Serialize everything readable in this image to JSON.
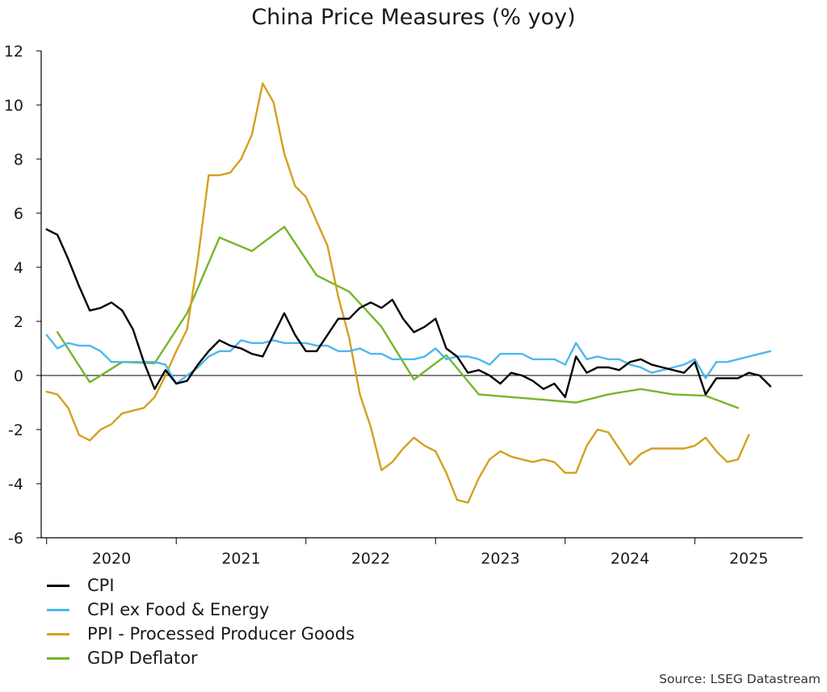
{
  "chart_data": {
    "type": "line",
    "title": "China Price Measures (% yoy)",
    "xlabel": "",
    "ylabel": "",
    "ylim": [
      -6,
      12
    ],
    "yticks": [
      12,
      10,
      8,
      6,
      4,
      2,
      0,
      -2,
      -4,
      -6
    ],
    "xlim": [
      2019.958,
      2025.833
    ],
    "year_labels": [
      "2020",
      "2021",
      "2022",
      "2023",
      "2024",
      "2025"
    ],
    "legend_position": "bottom-left",
    "grid": false,
    "source": "Source: LSEG Datastream",
    "series": [
      {
        "name": "CPI",
        "color": "#000000",
        "points": [
          [
            "2020-01",
            5.4
          ],
          [
            "2020-02",
            5.2
          ],
          [
            "2020-03",
            4.3
          ],
          [
            "2020-04",
            3.3
          ],
          [
            "2020-05",
            2.4
          ],
          [
            "2020-06",
            2.5
          ],
          [
            "2020-07",
            2.7
          ],
          [
            "2020-08",
            2.4
          ],
          [
            "2020-09",
            1.7
          ],
          [
            "2020-10",
            0.5
          ],
          [
            "2020-11",
            -0.5
          ],
          [
            "2020-12",
            0.2
          ],
          [
            "2021-01",
            -0.3
          ],
          [
            "2021-02",
            -0.2
          ],
          [
            "2021-03",
            0.4
          ],
          [
            "2021-04",
            0.9
          ],
          [
            "2021-05",
            1.3
          ],
          [
            "2021-06",
            1.1
          ],
          [
            "2021-07",
            1.0
          ],
          [
            "2021-08",
            0.8
          ],
          [
            "2021-09",
            0.7
          ],
          [
            "2021-10",
            1.5
          ],
          [
            "2021-11",
            2.3
          ],
          [
            "2021-12",
            1.5
          ],
          [
            "2022-01",
            0.9
          ],
          [
            "2022-02",
            0.9
          ],
          [
            "2022-03",
            1.5
          ],
          [
            "2022-04",
            2.1
          ],
          [
            "2022-05",
            2.1
          ],
          [
            "2022-06",
            2.5
          ],
          [
            "2022-07",
            2.7
          ],
          [
            "2022-08",
            2.5
          ],
          [
            "2022-09",
            2.8
          ],
          [
            "2022-10",
            2.1
          ],
          [
            "2022-11",
            1.6
          ],
          [
            "2022-12",
            1.8
          ],
          [
            "2023-01",
            2.1
          ],
          [
            "2023-02",
            1.0
          ],
          [
            "2023-03",
            0.7
          ],
          [
            "2023-04",
            0.1
          ],
          [
            "2023-05",
            0.2
          ],
          [
            "2023-06",
            0.0
          ],
          [
            "2023-07",
            -0.3
          ],
          [
            "2023-08",
            0.1
          ],
          [
            "2023-09",
            0.0
          ],
          [
            "2023-10",
            -0.2
          ],
          [
            "2023-11",
            -0.5
          ],
          [
            "2023-12",
            -0.3
          ],
          [
            "2024-01",
            -0.8
          ],
          [
            "2024-02",
            0.7
          ],
          [
            "2024-03",
            0.1
          ],
          [
            "2024-04",
            0.3
          ],
          [
            "2024-05",
            0.3
          ],
          [
            "2024-06",
            0.2
          ],
          [
            "2024-07",
            0.5
          ],
          [
            "2024-08",
            0.6
          ],
          [
            "2024-09",
            0.4
          ],
          [
            "2024-10",
            0.3
          ],
          [
            "2024-11",
            0.2
          ],
          [
            "2024-12",
            0.1
          ],
          [
            "2025-01",
            0.5
          ],
          [
            "2025-02",
            -0.7
          ],
          [
            "2025-03",
            -0.1
          ],
          [
            "2025-04",
            -0.1
          ],
          [
            "2025-05",
            -0.1
          ],
          [
            "2025-06",
            0.1
          ],
          [
            "2025-07",
            0.0
          ],
          [
            "2025-08",
            -0.4
          ]
        ]
      },
      {
        "name": "CPI ex Food & Energy",
        "color": "#4db8f0",
        "points": [
          [
            "2020-01",
            1.5
          ],
          [
            "2020-02",
            1.0
          ],
          [
            "2020-03",
            1.2
          ],
          [
            "2020-04",
            1.1
          ],
          [
            "2020-05",
            1.1
          ],
          [
            "2020-06",
            0.9
          ],
          [
            "2020-07",
            0.5
          ],
          [
            "2020-08",
            0.5
          ],
          [
            "2020-09",
            0.5
          ],
          [
            "2020-10",
            0.5
          ],
          [
            "2020-11",
            0.5
          ],
          [
            "2020-12",
            0.4
          ],
          [
            "2021-01",
            -0.3
          ],
          [
            "2021-02",
            0.0
          ],
          [
            "2021-03",
            0.3
          ],
          [
            "2021-04",
            0.7
          ],
          [
            "2021-05",
            0.9
          ],
          [
            "2021-06",
            0.9
          ],
          [
            "2021-07",
            1.3
          ],
          [
            "2021-08",
            1.2
          ],
          [
            "2021-09",
            1.2
          ],
          [
            "2021-10",
            1.3
          ],
          [
            "2021-11",
            1.2
          ],
          [
            "2021-12",
            1.2
          ],
          [
            "2022-01",
            1.2
          ],
          [
            "2022-02",
            1.1
          ],
          [
            "2022-03",
            1.1
          ],
          [
            "2022-04",
            0.9
          ],
          [
            "2022-05",
            0.9
          ],
          [
            "2022-06",
            1.0
          ],
          [
            "2022-07",
            0.8
          ],
          [
            "2022-08",
            0.8
          ],
          [
            "2022-09",
            0.6
          ],
          [
            "2022-10",
            0.6
          ],
          [
            "2022-11",
            0.6
          ],
          [
            "2022-12",
            0.7
          ],
          [
            "2023-01",
            1.0
          ],
          [
            "2023-02",
            0.6
          ],
          [
            "2023-03",
            0.7
          ],
          [
            "2023-04",
            0.7
          ],
          [
            "2023-05",
            0.6
          ],
          [
            "2023-06",
            0.4
          ],
          [
            "2023-07",
            0.8
          ],
          [
            "2023-08",
            0.8
          ],
          [
            "2023-09",
            0.8
          ],
          [
            "2023-10",
            0.6
          ],
          [
            "2023-11",
            0.6
          ],
          [
            "2023-12",
            0.6
          ],
          [
            "2024-01",
            0.4
          ],
          [
            "2024-02",
            1.2
          ],
          [
            "2024-03",
            0.6
          ],
          [
            "2024-04",
            0.7
          ],
          [
            "2024-05",
            0.6
          ],
          [
            "2024-06",
            0.6
          ],
          [
            "2024-07",
            0.4
          ],
          [
            "2024-08",
            0.3
          ],
          [
            "2024-09",
            0.1
          ],
          [
            "2024-10",
            0.2
          ],
          [
            "2024-11",
            0.3
          ],
          [
            "2024-12",
            0.4
          ],
          [
            "2025-01",
            0.6
          ],
          [
            "2025-02",
            -0.1
          ],
          [
            "2025-03",
            0.5
          ],
          [
            "2025-04",
            0.5
          ],
          [
            "2025-05",
            0.6
          ],
          [
            "2025-06",
            0.7
          ],
          [
            "2025-07",
            0.8
          ],
          [
            "2025-08",
            0.9
          ]
        ]
      },
      {
        "name": "PPI - Processed Producer Goods",
        "color": "#d4a020",
        "points": [
          [
            "2020-01",
            -0.6
          ],
          [
            "2020-02",
            -0.7
          ],
          [
            "2020-03",
            -1.2
          ],
          [
            "2020-04",
            -2.2
          ],
          [
            "2020-05",
            -2.4
          ],
          [
            "2020-06",
            -2.0
          ],
          [
            "2020-07",
            -1.8
          ],
          [
            "2020-08",
            -1.4
          ],
          [
            "2020-09",
            -1.3
          ],
          [
            "2020-10",
            -1.2
          ],
          [
            "2020-11",
            -0.8
          ],
          [
            "2020-12",
            0.0
          ],
          [
            "2021-01",
            0.9
          ],
          [
            "2021-02",
            1.7
          ],
          [
            "2021-03",
            4.3
          ],
          [
            "2021-04",
            7.4
          ],
          [
            "2021-05",
            7.4
          ],
          [
            "2021-06",
            7.5
          ],
          [
            "2021-07",
            8.0
          ],
          [
            "2021-08",
            8.9
          ],
          [
            "2021-09",
            10.8
          ],
          [
            "2021-10",
            10.1
          ],
          [
            "2021-11",
            8.2
          ],
          [
            "2021-12",
            7.0
          ],
          [
            "2022-01",
            6.6
          ],
          [
            "2022-02",
            5.7
          ],
          [
            "2022-03",
            4.8
          ],
          [
            "2022-04",
            2.9
          ],
          [
            "2022-05",
            1.4
          ],
          [
            "2022-06",
            -0.7
          ],
          [
            "2022-07",
            -1.9
          ],
          [
            "2022-08",
            -3.5
          ],
          [
            "2022-09",
            -3.2
          ],
          [
            "2022-10",
            -2.7
          ],
          [
            "2022-11",
            -2.3
          ],
          [
            "2022-12",
            -2.6
          ],
          [
            "2023-01",
            -2.8
          ],
          [
            "2023-02",
            -3.6
          ],
          [
            "2023-03",
            -4.6
          ],
          [
            "2023-04",
            -4.7
          ],
          [
            "2023-05",
            -3.8
          ],
          [
            "2023-06",
            -3.1
          ],
          [
            "2023-07",
            -2.8
          ],
          [
            "2023-08",
            -3.0
          ],
          [
            "2023-09",
            -3.1
          ],
          [
            "2023-10",
            -3.2
          ],
          [
            "2023-11",
            -3.1
          ],
          [
            "2023-12",
            -3.2
          ],
          [
            "2024-01",
            -3.6
          ],
          [
            "2024-02",
            -3.6
          ],
          [
            "2024-03",
            -2.6
          ],
          [
            "2024-04",
            -2.0
          ],
          [
            "2024-05",
            -2.1
          ],
          [
            "2024-06",
            -2.7
          ],
          [
            "2024-07",
            -3.3
          ],
          [
            "2024-08",
            -2.9
          ],
          [
            "2024-09",
            -2.7
          ],
          [
            "2024-10",
            -2.7
          ],
          [
            "2024-11",
            -2.7
          ],
          [
            "2024-12",
            -2.7
          ],
          [
            "2025-01",
            -2.6
          ],
          [
            "2025-02",
            -2.3
          ],
          [
            "2025-03",
            -2.8
          ],
          [
            "2025-04",
            -3.2
          ],
          [
            "2025-05",
            -3.1
          ],
          [
            "2025-06",
            -2.2
          ]
        ]
      },
      {
        "name": "GDP Deflator",
        "color": "#77b52a",
        "points": [
          [
            "2020-02",
            1.6
          ],
          [
            "2020-05",
            -0.25
          ],
          [
            "2020-08",
            0.5
          ],
          [
            "2020-11",
            0.45
          ],
          [
            "2021-02",
            2.3
          ],
          [
            "2021-05",
            5.1
          ],
          [
            "2021-08",
            4.6
          ],
          [
            "2021-11",
            5.5
          ],
          [
            "2022-02",
            3.7
          ],
          [
            "2022-05",
            3.1
          ],
          [
            "2022-08",
            1.8
          ],
          [
            "2022-11",
            -0.15
          ],
          [
            "2023-02",
            0.75
          ],
          [
            "2023-05",
            -0.7
          ],
          [
            "2023-08",
            -0.8
          ],
          [
            "2023-11",
            -0.9
          ],
          [
            "2024-02",
            -1.0
          ],
          [
            "2024-05",
            -0.7
          ],
          [
            "2024-08",
            -0.5
          ],
          [
            "2024-11",
            -0.7
          ],
          [
            "2025-02",
            -0.75
          ],
          [
            "2025-05",
            -1.2
          ]
        ]
      }
    ]
  }
}
